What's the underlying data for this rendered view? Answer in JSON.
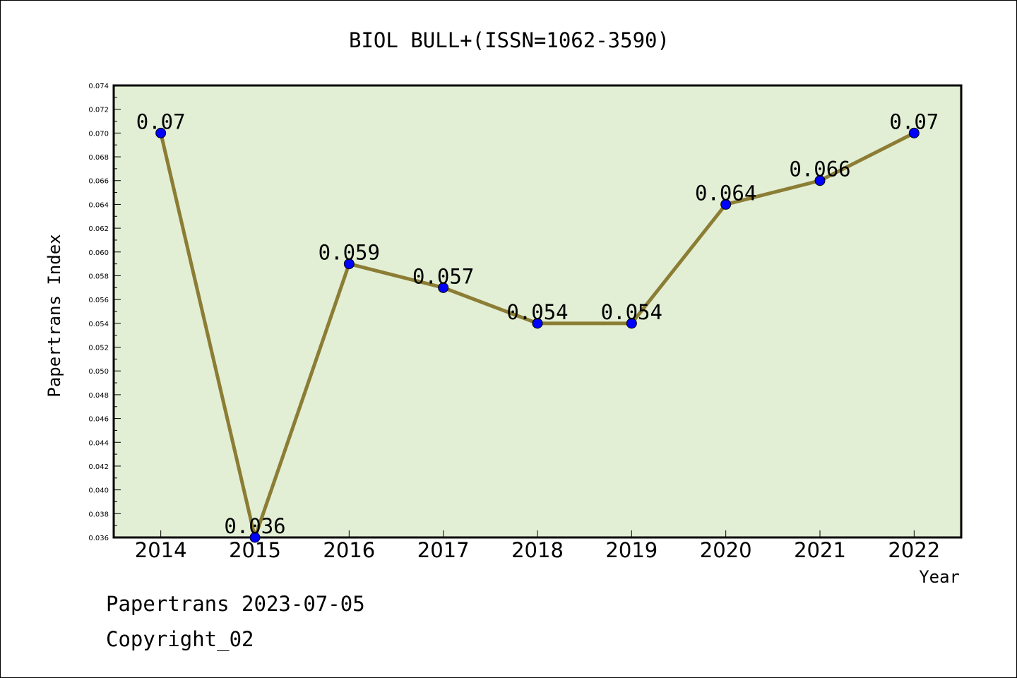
{
  "chart_data": {
    "type": "line",
    "title": "BIOL BULL+(ISSN=1062-3590)",
    "xlabel": "Year",
    "ylabel": "Papertrans Index",
    "x": [
      "2014",
      "2015",
      "2016",
      "2017",
      "2018",
      "2019",
      "2020",
      "2021",
      "2022"
    ],
    "series": [
      {
        "values": [
          0.07,
          0.036,
          0.059,
          0.057,
          0.054,
          0.054,
          0.064,
          0.066,
          0.07
        ],
        "labels": [
          "0.07",
          "0.036",
          "0.059",
          "0.057",
          "0.054",
          "0.054",
          "0.064",
          "0.066",
          "0.07"
        ]
      }
    ],
    "ylim": [
      0.036,
      0.074
    ],
    "yticks": [
      "0.036",
      "0.038",
      "0.040",
      "0.042",
      "0.044",
      "0.046",
      "0.048",
      "0.050",
      "0.052",
      "0.054",
      "0.056",
      "0.058",
      "0.060",
      "0.062",
      "0.064",
      "0.066",
      "0.068",
      "0.070",
      "0.072",
      "0.074"
    ],
    "grid": false,
    "colors": {
      "plot_bg": "#e2efd5",
      "line": "#8c7d35",
      "marker": "#0000ff"
    }
  },
  "footer": {
    "line1": "Papertrans 2023-07-05",
    "line2": "Copyright_02"
  }
}
